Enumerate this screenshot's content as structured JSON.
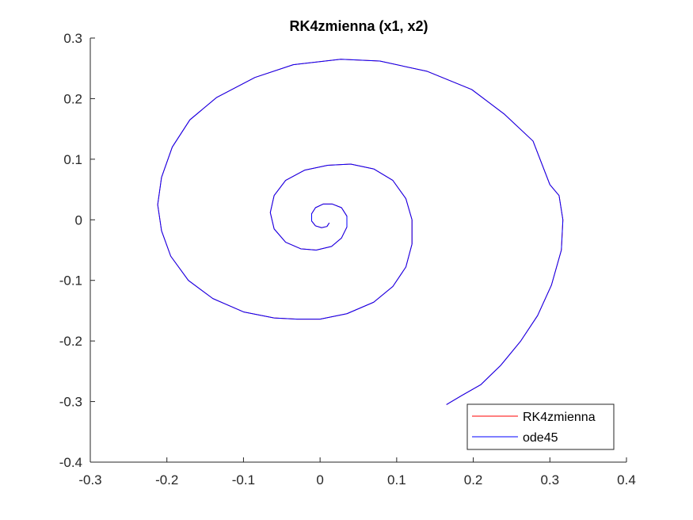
{
  "chart_data": {
    "type": "line",
    "title": "RK4zmienna (x1, x2)",
    "xlabel": "",
    "ylabel": "",
    "xlim": [
      -0.3,
      0.4
    ],
    "ylim": [
      -0.4,
      0.3
    ],
    "xticks": [
      -0.3,
      -0.2,
      -0.1,
      0,
      0.1,
      0.2,
      0.3,
      0.4
    ],
    "yticks": [
      -0.4,
      -0.3,
      -0.2,
      -0.1,
      0,
      0.1,
      0.2,
      0.3
    ],
    "xtick_labels": [
      "-0.3",
      "-0.2",
      "-0.1",
      "0",
      "0.1",
      "0.2",
      "0.3",
      "0.4"
    ],
    "ytick_labels": [
      "-0.4",
      "-0.3",
      "-0.2",
      "-0.1",
      "0",
      "0.1",
      "0.2",
      "0.3"
    ],
    "grid": false,
    "legend_position": "bottom-right",
    "series": [
      {
        "name": "RK4zmienna",
        "color": "#ff0000",
        "points": [
          [
            0.165,
            -0.305
          ],
          [
            0.185,
            -0.29
          ],
          [
            0.21,
            -0.272
          ],
          [
            0.236,
            -0.24
          ],
          [
            0.262,
            -0.2
          ],
          [
            0.284,
            -0.158
          ],
          [
            0.302,
            -0.108
          ],
          [
            0.315,
            -0.05
          ],
          [
            0.317,
            0.0
          ],
          [
            0.312,
            0.04
          ],
          [
            0.3,
            0.058
          ],
          [
            0.278,
            0.13
          ],
          [
            0.24,
            0.175
          ],
          [
            0.198,
            0.215
          ],
          [
            0.14,
            0.245
          ],
          [
            0.078,
            0.262
          ],
          [
            0.027,
            0.265
          ],
          [
            -0.035,
            0.256
          ],
          [
            -0.085,
            0.235
          ],
          [
            -0.135,
            0.202
          ],
          [
            -0.17,
            0.165
          ],
          [
            -0.193,
            0.12
          ],
          [
            -0.207,
            0.07
          ],
          [
            -0.212,
            0.025
          ],
          [
            -0.207,
            -0.018
          ],
          [
            -0.195,
            -0.06
          ],
          [
            -0.172,
            -0.1
          ],
          [
            -0.14,
            -0.13
          ],
          [
            -0.1,
            -0.152
          ],
          [
            -0.06,
            -0.162
          ],
          [
            -0.03,
            -0.164
          ],
          [
            0.0,
            -0.164
          ],
          [
            0.035,
            -0.155
          ],
          [
            0.07,
            -0.136
          ],
          [
            0.095,
            -0.11
          ],
          [
            0.112,
            -0.078
          ],
          [
            0.12,
            -0.04
          ],
          [
            0.12,
            0.0
          ],
          [
            0.112,
            0.035
          ],
          [
            0.095,
            0.065
          ],
          [
            0.07,
            0.084
          ],
          [
            0.04,
            0.092
          ],
          [
            0.01,
            0.09
          ],
          [
            -0.02,
            0.082
          ],
          [
            -0.045,
            0.065
          ],
          [
            -0.06,
            0.04
          ],
          [
            -0.065,
            0.012
          ],
          [
            -0.06,
            -0.015
          ],
          [
            -0.045,
            -0.037
          ],
          [
            -0.025,
            -0.048
          ],
          [
            -0.005,
            -0.05
          ],
          [
            0.015,
            -0.044
          ],
          [
            0.028,
            -0.03
          ],
          [
            0.035,
            -0.012
          ],
          [
            0.035,
            0.006
          ],
          [
            0.028,
            0.02
          ],
          [
            0.016,
            0.026
          ],
          [
            0.004,
            0.026
          ],
          [
            -0.006,
            0.02
          ],
          [
            -0.011,
            0.01
          ],
          [
            -0.011,
            -0.002
          ],
          [
            -0.006,
            -0.01
          ],
          [
            0.002,
            -0.013
          ],
          [
            0.009,
            -0.011
          ],
          [
            0.012,
            -0.005
          ]
        ]
      },
      {
        "name": "ode45",
        "color": "#0000ff",
        "points": [
          [
            0.165,
            -0.305
          ],
          [
            0.185,
            -0.29
          ],
          [
            0.21,
            -0.272
          ],
          [
            0.236,
            -0.24
          ],
          [
            0.262,
            -0.2
          ],
          [
            0.284,
            -0.158
          ],
          [
            0.302,
            -0.108
          ],
          [
            0.315,
            -0.05
          ],
          [
            0.317,
            0.0
          ],
          [
            0.312,
            0.04
          ],
          [
            0.3,
            0.058
          ],
          [
            0.278,
            0.13
          ],
          [
            0.24,
            0.175
          ],
          [
            0.198,
            0.215
          ],
          [
            0.14,
            0.245
          ],
          [
            0.078,
            0.262
          ],
          [
            0.027,
            0.265
          ],
          [
            -0.035,
            0.256
          ],
          [
            -0.085,
            0.235
          ],
          [
            -0.135,
            0.202
          ],
          [
            -0.17,
            0.165
          ],
          [
            -0.193,
            0.12
          ],
          [
            -0.207,
            0.07
          ],
          [
            -0.212,
            0.025
          ],
          [
            -0.207,
            -0.018
          ],
          [
            -0.195,
            -0.06
          ],
          [
            -0.172,
            -0.1
          ],
          [
            -0.14,
            -0.13
          ],
          [
            -0.1,
            -0.152
          ],
          [
            -0.06,
            -0.162
          ],
          [
            -0.03,
            -0.164
          ],
          [
            0.0,
            -0.164
          ],
          [
            0.035,
            -0.155
          ],
          [
            0.07,
            -0.136
          ],
          [
            0.095,
            -0.11
          ],
          [
            0.112,
            -0.078
          ],
          [
            0.12,
            -0.04
          ],
          [
            0.12,
            0.0
          ],
          [
            0.112,
            0.035
          ],
          [
            0.095,
            0.065
          ],
          [
            0.07,
            0.084
          ],
          [
            0.04,
            0.092
          ],
          [
            0.01,
            0.09
          ],
          [
            -0.02,
            0.082
          ],
          [
            -0.045,
            0.065
          ],
          [
            -0.06,
            0.04
          ],
          [
            -0.065,
            0.012
          ],
          [
            -0.06,
            -0.015
          ],
          [
            -0.045,
            -0.037
          ],
          [
            -0.025,
            -0.048
          ],
          [
            -0.005,
            -0.05
          ],
          [
            0.015,
            -0.044
          ],
          [
            0.028,
            -0.03
          ],
          [
            0.035,
            -0.012
          ],
          [
            0.035,
            0.006
          ],
          [
            0.028,
            0.02
          ],
          [
            0.016,
            0.026
          ],
          [
            0.004,
            0.026
          ],
          [
            -0.006,
            0.02
          ],
          [
            -0.011,
            0.01
          ],
          [
            -0.011,
            -0.002
          ],
          [
            -0.006,
            -0.01
          ],
          [
            0.002,
            -0.013
          ],
          [
            0.009,
            -0.011
          ],
          [
            0.012,
            -0.005
          ]
        ]
      }
    ]
  }
}
